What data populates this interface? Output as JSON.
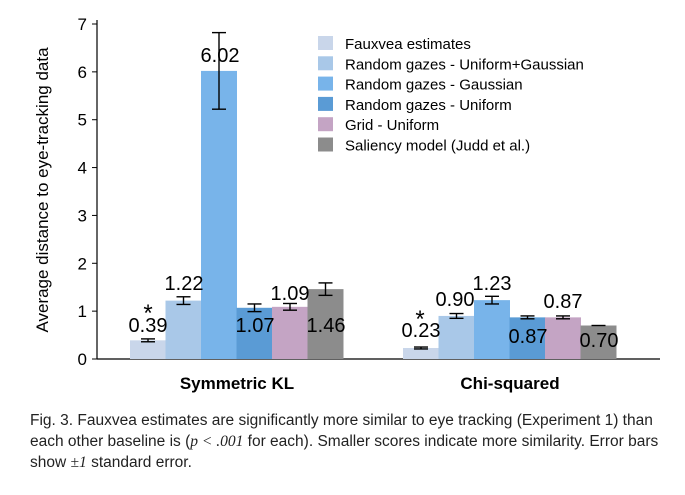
{
  "chart_data": {
    "type": "bar",
    "ylabel": "Average distance to eye-tracking data",
    "ylim": [
      0,
      7
    ],
    "yticks": [
      0,
      1,
      2,
      3,
      4,
      5,
      6,
      7
    ],
    "categories": [
      "Symmetric KL",
      "Chi-squared"
    ],
    "grid": false,
    "legend_position": "top-right",
    "series": [
      {
        "name": "Fauxvea estimates",
        "color": "#c9d6ea",
        "values": [
          0.39,
          0.23
        ],
        "errors": [
          0.03,
          0.02
        ],
        "labels": [
          "0.39",
          "0.23"
        ],
        "marker": [
          "*",
          "*"
        ]
      },
      {
        "name": "Random gazes - Uniform+Gaussian",
        "color": "#a9c8e8",
        "values": [
          1.22,
          0.9
        ],
        "errors": [
          0.08,
          0.05
        ],
        "labels": [
          "1.22",
          "0.90"
        ],
        "marker": [
          "",
          ""
        ]
      },
      {
        "name": "Random gazes - Gaussian",
        "color": "#78b4ea",
        "values": [
          6.02,
          1.23
        ],
        "errors": [
          0.8,
          0.08
        ],
        "labels": [
          "6.02",
          "1.23"
        ],
        "marker": [
          "",
          ""
        ]
      },
      {
        "name": "Random gazes - Uniform",
        "color": "#5a9bd5",
        "values": [
          1.07,
          0.87
        ],
        "errors": [
          0.08,
          0.03
        ],
        "labels": [
          "1.07",
          "0.87"
        ],
        "marker": [
          "",
          ""
        ]
      },
      {
        "name": "Grid - Uniform",
        "color": "#c4a4c4",
        "values": [
          1.09,
          0.87
        ],
        "errors": [
          0.07,
          0.03
        ],
        "labels": [
          "1.09",
          "0.87"
        ],
        "marker": [
          "",
          ""
        ]
      },
      {
        "name": "Saliency model (Judd et al.)",
        "color": "#8c8c8c",
        "values": [
          1.46,
          0.7
        ],
        "errors": [
          0.13,
          0.01
        ],
        "labels": [
          "1.46",
          "0.70"
        ],
        "marker": [
          "",
          ""
        ]
      }
    ]
  },
  "caption": {
    "before_math": "Fig. 3. Fauxvea estimates are significantly more similar to eye tracking (Experiment 1) than each other baseline is (",
    "math": "p < .001",
    "after_math": " for each). Smaller scores indicate more similarity. Error bars show ",
    "pm": "±1",
    "end": " standard error."
  }
}
